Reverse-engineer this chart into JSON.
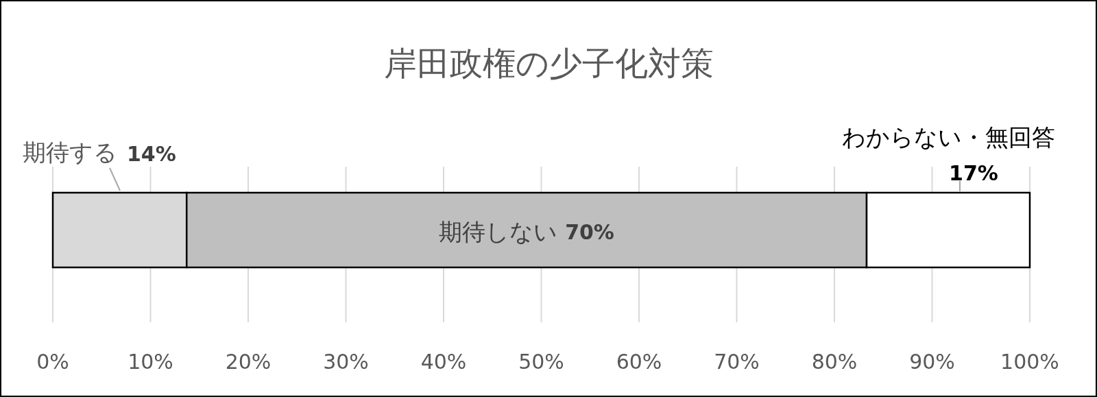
{
  "chart_data": {
    "type": "bar",
    "orientation": "horizontal",
    "stacked": true,
    "title": "岸田政権の少子化対策",
    "categories": [
      null
    ],
    "tick_labels": "x",
    "grid": "x",
    "series": [
      {
        "name": "期待する",
        "color": "#d9d9d9",
        "values": [
          13.7
        ],
        "value_labels": [
          "14%"
        ]
      },
      {
        "name": "期待しない",
        "color": "#bfbfbf",
        "values": [
          69.6
        ],
        "value_labels": [
          "70%"
        ]
      },
      {
        "name": "わからない・無回答",
        "color": "#ffffff",
        "values": [
          16.7
        ],
        "value_labels": [
          "17%"
        ]
      }
    ],
    "xlim": [
      0,
      100
    ],
    "xticks": [
      {
        "value": 0,
        "label": "0%"
      },
      {
        "value": 10,
        "label": "10%"
      },
      {
        "value": 20,
        "label": "20%"
      },
      {
        "value": 30,
        "label": "30%"
      },
      {
        "value": 40,
        "label": "40%"
      },
      {
        "value": 50,
        "label": "50%"
      },
      {
        "value": 60,
        "label": "60%"
      },
      {
        "value": 70,
        "label": "70%"
      },
      {
        "value": 80,
        "label": "80%"
      },
      {
        "value": 90,
        "label": "90%"
      },
      {
        "value": 100,
        "label": "100%"
      }
    ]
  }
}
